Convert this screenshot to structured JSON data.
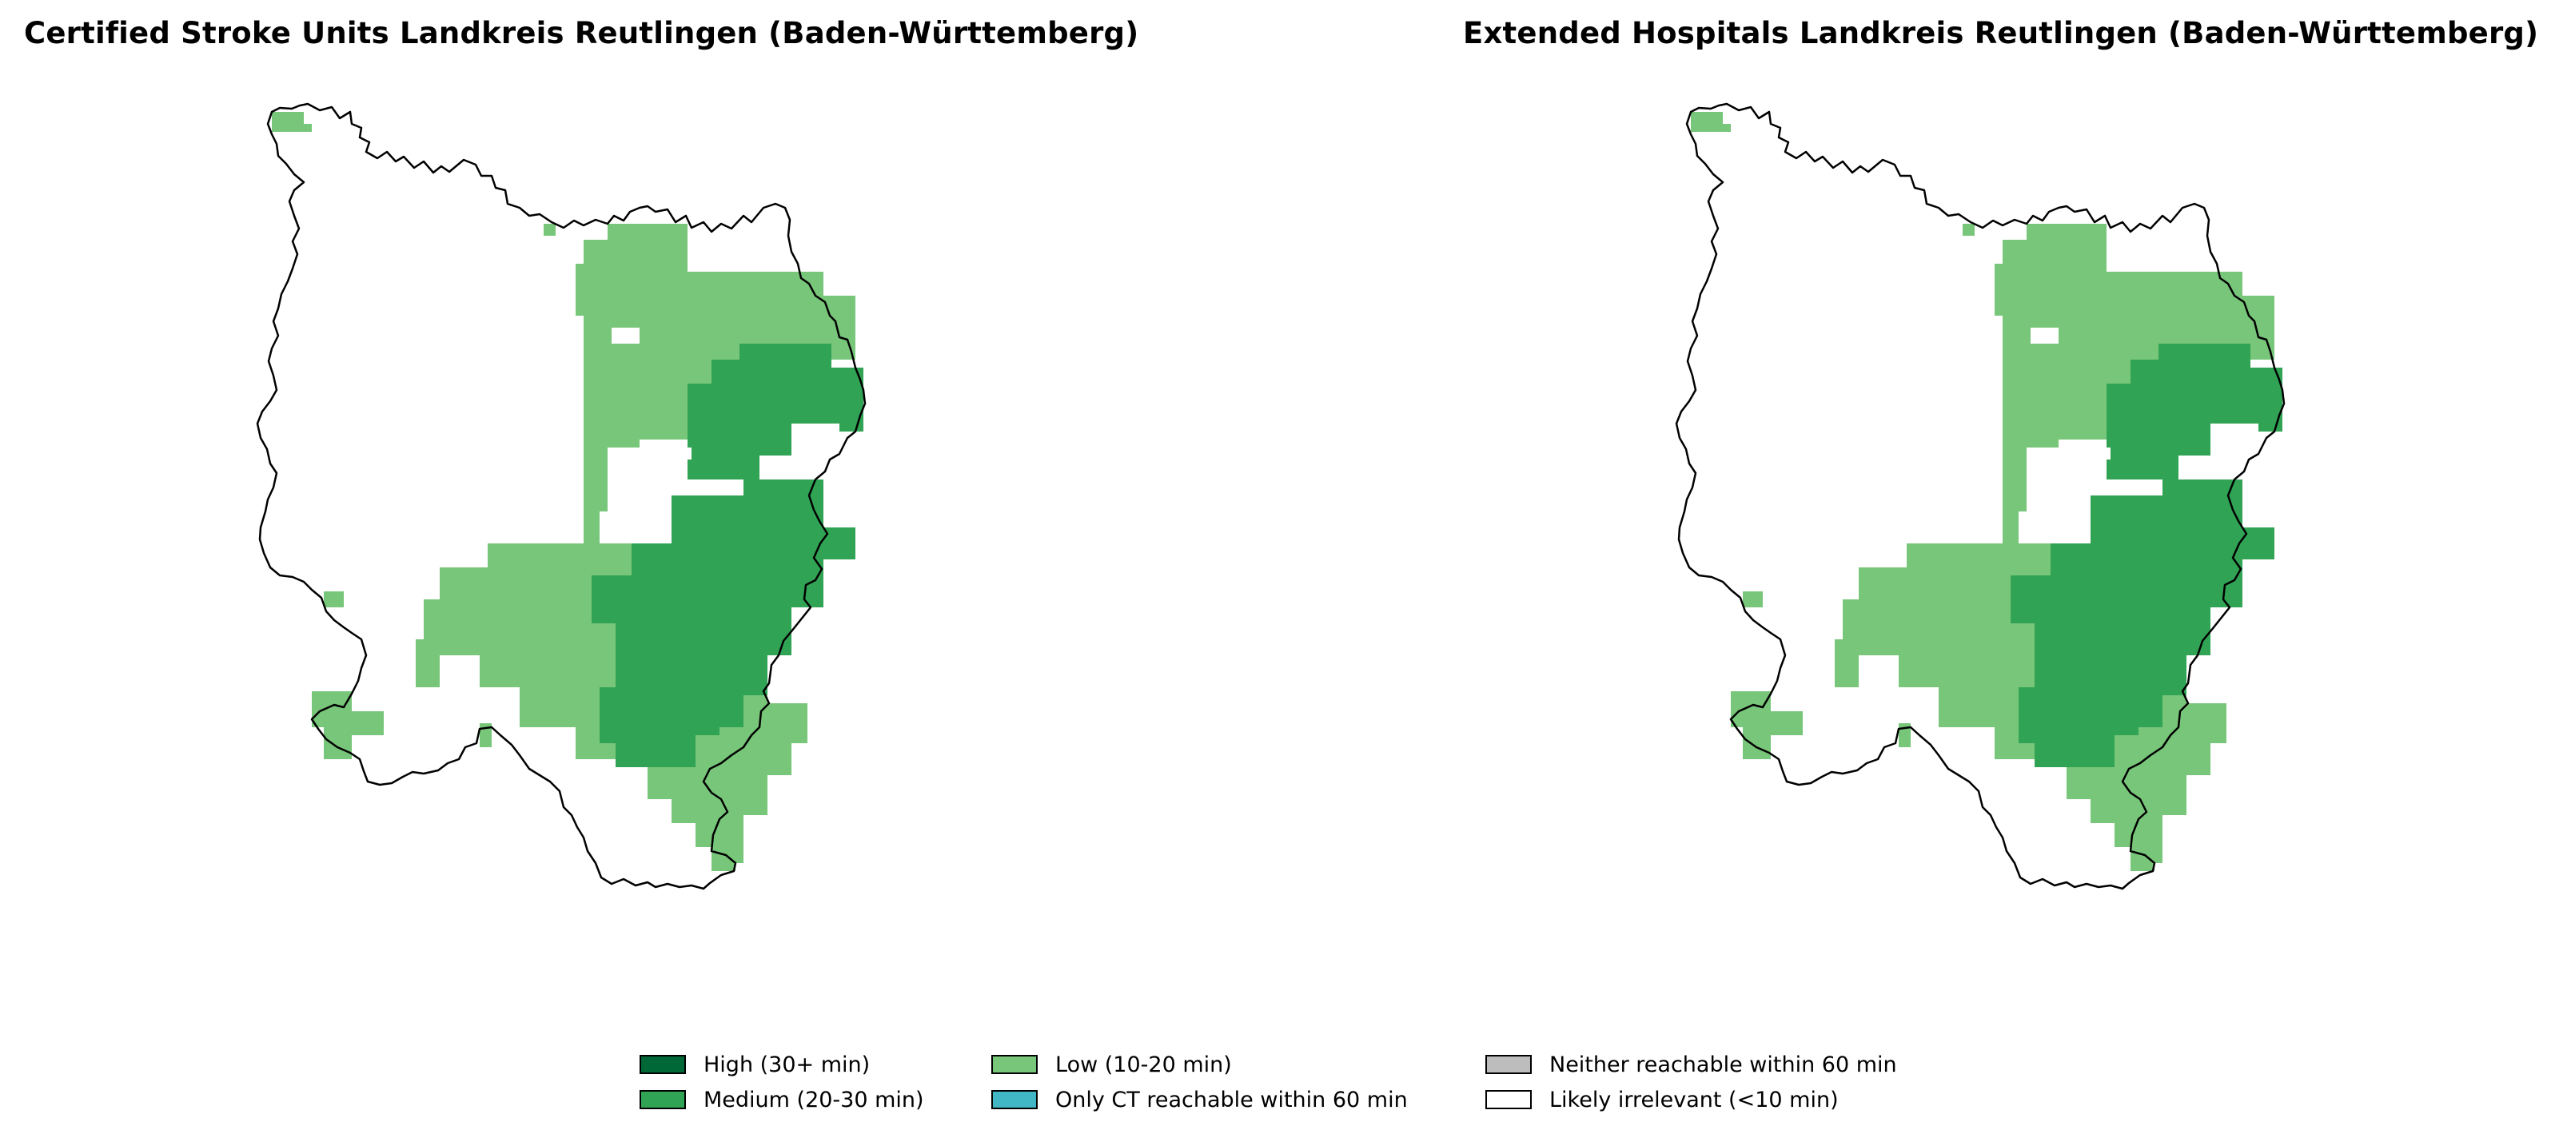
{
  "panels": [
    {
      "title": "Certified Stroke Units Landkreis Reutlingen (Baden-Württemberg)"
    },
    {
      "title": "Extended Hospitals Landkreis Reutlingen (Baden-Württemberg)"
    }
  ],
  "legend": [
    {
      "label": "High (30+ min)",
      "color": "#006837"
    },
    {
      "label": "Medium (20-30 min)",
      "color": "#31a354"
    },
    {
      "label": "Low (10-20 min)",
      "color": "#78c679"
    },
    {
      "label": "Only CT reachable within 60 min",
      "color": "#41b6c4"
    },
    {
      "label": "Neither reachable within 60 min",
      "color": "#bdbdbd"
    },
    {
      "label": "Likely irrelevant (<10 min)",
      "color": "#ffffff"
    }
  ],
  "colors": {
    "boundary": "#000000",
    "low": "#78c679",
    "medium": "#31a354"
  }
}
